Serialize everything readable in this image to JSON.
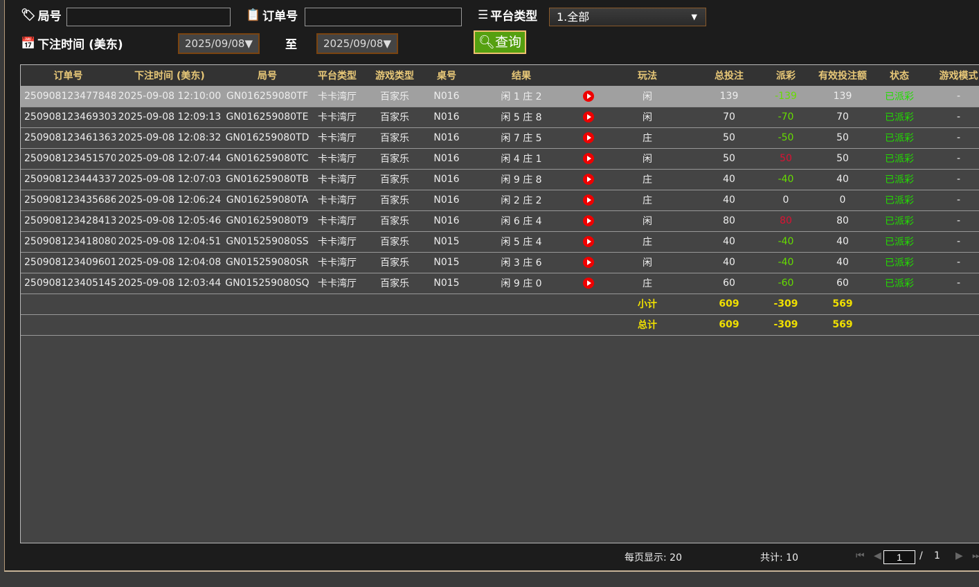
{
  "filters": {
    "round_label": "局号",
    "round_value": "",
    "order_label": "订单号",
    "order_value": "",
    "platform_label": "平台类型",
    "platform_value": "1.全部",
    "time_label": "下注时间 (美东)",
    "date_from": "2025/09/08▼",
    "to_label": "至",
    "date_to": "2025/09/08▼",
    "query_label": "查询"
  },
  "table": {
    "headers": [
      "订单号",
      "下注时间 (美东)",
      "局号",
      "平台类型",
      "游戏类型",
      "桌号",
      "结果",
      "",
      "玩法",
      "总投注",
      "派彩",
      "有效投注额",
      "状态",
      "游戏模式"
    ],
    "rows": [
      [
        "250908123477848",
        "2025-09-08 12:10:00",
        "GN016259080TF",
        "卡卡湾厅",
        "百家乐",
        "N016",
        "闲 1 庄 2",
        "闲",
        "139",
        "-139",
        "139",
        "已派彩",
        "-"
      ],
      [
        "250908123469303",
        "2025-09-08 12:09:13",
        "GN016259080TE",
        "卡卡湾厅",
        "百家乐",
        "N016",
        "闲 5 庄 8",
        "闲",
        "70",
        "-70",
        "70",
        "已派彩",
        "-"
      ],
      [
        "250908123461363",
        "2025-09-08 12:08:32",
        "GN016259080TD",
        "卡卡湾厅",
        "百家乐",
        "N016",
        "闲 7 庄 5",
        "庄",
        "50",
        "-50",
        "50",
        "已派彩",
        "-"
      ],
      [
        "250908123451570",
        "2025-09-08 12:07:44",
        "GN016259080TC",
        "卡卡湾厅",
        "百家乐",
        "N016",
        "闲 4 庄 1",
        "闲",
        "50",
        "50",
        "50",
        "已派彩",
        "-"
      ],
      [
        "250908123444337",
        "2025-09-08 12:07:03",
        "GN016259080TB",
        "卡卡湾厅",
        "百家乐",
        "N016",
        "闲 9 庄 8",
        "庄",
        "40",
        "-40",
        "40",
        "已派彩",
        "-"
      ],
      [
        "250908123435686",
        "2025-09-08 12:06:24",
        "GN016259080TA",
        "卡卡湾厅",
        "百家乐",
        "N016",
        "闲 2 庄 2",
        "庄",
        "40",
        "0",
        "0",
        "已派彩",
        "-"
      ],
      [
        "250908123428413",
        "2025-09-08 12:05:46",
        "GN016259080T9",
        "卡卡湾厅",
        "百家乐",
        "N016",
        "闲 6 庄 4",
        "闲",
        "80",
        "80",
        "80",
        "已派彩",
        "-"
      ],
      [
        "250908123418080",
        "2025-09-08 12:04:51",
        "GN015259080SS",
        "卡卡湾厅",
        "百家乐",
        "N015",
        "闲 5 庄 4",
        "庄",
        "40",
        "-40",
        "40",
        "已派彩",
        "-"
      ],
      [
        "250908123409601",
        "2025-09-08 12:04:08",
        "GN015259080SR",
        "卡卡湾厅",
        "百家乐",
        "N015",
        "闲 3 庄 6",
        "闲",
        "40",
        "-40",
        "40",
        "已派彩",
        "-"
      ],
      [
        "250908123405145",
        "2025-09-08 12:03:44",
        "GN015259080SQ",
        "卡卡湾厅",
        "百家乐",
        "N015",
        "闲 9 庄 0",
        "庄",
        "60",
        "-60",
        "60",
        "已派彩",
        "-"
      ]
    ],
    "subtotal": {
      "label": "小计",
      "total_bet": "609",
      "payout": "-309",
      "valid_bet": "569"
    },
    "total": {
      "label": "总计",
      "total_bet": "609",
      "payout": "-309",
      "valid_bet": "569"
    }
  },
  "footer": {
    "page_size": "每页显示: 20",
    "count": "共计: 10",
    "page": "1",
    "sep": "/",
    "pages": "1"
  },
  "colors": {
    "accent": "#55a010",
    "header_text": "#e8c878",
    "neg": "#66dd00",
    "pos": "#dd1133",
    "status": "#22dd00",
    "sum": "#f0e000"
  }
}
